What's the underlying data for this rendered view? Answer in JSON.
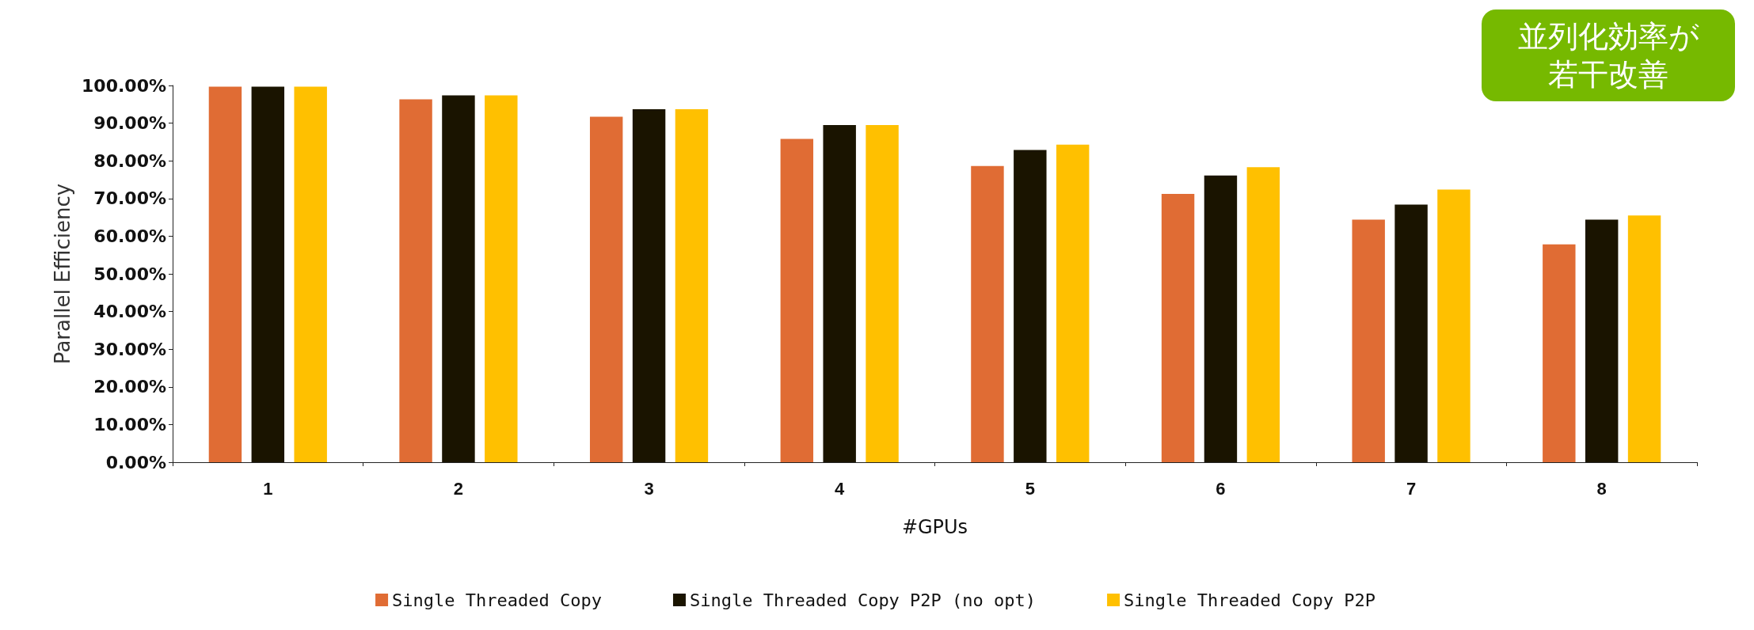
{
  "chart_data": {
    "type": "bar",
    "xlabel": "#GPUs",
    "ylabel": "Parallel Efficiency",
    "categories": [
      "1",
      "2",
      "3",
      "4",
      "5",
      "6",
      "7",
      "8"
    ],
    "series": [
      {
        "name": "Single Threaded Copy",
        "color": "#e06c34",
        "values": [
          99.7,
          96.3,
          91.7,
          85.8,
          78.6,
          71.2,
          64.4,
          57.8
        ]
      },
      {
        "name": "Single Threaded Copy P2P (no opt)",
        "color": "#1a1400",
        "values": [
          99.7,
          97.4,
          93.7,
          89.5,
          82.9,
          76.1,
          68.4,
          64.4
        ]
      },
      {
        "name": "Single Threaded Copy P2P",
        "color": "#ffc000",
        "values": [
          99.7,
          97.4,
          93.7,
          89.5,
          84.3,
          78.3,
          72.4,
          65.5
        ]
      }
    ],
    "ylim": [
      0,
      100
    ],
    "yticks": [
      {
        "value": 0,
        "label": "0.00%"
      },
      {
        "value": 10,
        "label": "10.00%"
      },
      {
        "value": 20,
        "label": "20.00%"
      },
      {
        "value": 30,
        "label": "30.00%"
      },
      {
        "value": 40,
        "label": "40.00%"
      },
      {
        "value": 50,
        "label": "50.00%"
      },
      {
        "value": 60,
        "label": "60.00%"
      },
      {
        "value": 70,
        "label": "70.00%"
      },
      {
        "value": 80,
        "label": "80.00%"
      },
      {
        "value": 90,
        "label": "90.00%"
      },
      {
        "value": 100,
        "label": "100.00%"
      }
    ],
    "grid": false,
    "legend": "bottom",
    "annotations": [
      "並列化効率が若干改善"
    ]
  }
}
